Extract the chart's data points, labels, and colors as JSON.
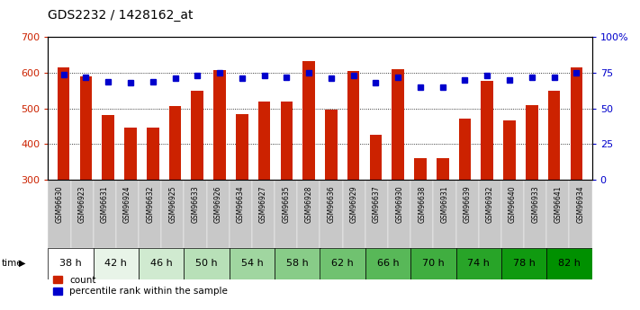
{
  "title": "GDS2232 / 1428162_at",
  "gsm_labels": [
    "GSM96630",
    "GSM96923",
    "GSM96631",
    "GSM96924",
    "GSM96632",
    "GSM96925",
    "GSM96633",
    "GSM96926",
    "GSM96634",
    "GSM96927",
    "GSM96635",
    "GSM96928",
    "GSM96636",
    "GSM96929",
    "GSM96637",
    "GSM96930",
    "GSM96638",
    "GSM96931",
    "GSM96639",
    "GSM96932",
    "GSM96640",
    "GSM96933",
    "GSM96641",
    "GSM96934"
  ],
  "time_labels": [
    "38 h",
    "42 h",
    "46 h",
    "50 h",
    "54 h",
    "58 h",
    "62 h",
    "66 h",
    "70 h",
    "74 h",
    "78 h",
    "82 h"
  ],
  "time_groups": [
    2,
    2,
    2,
    2,
    2,
    2,
    2,
    2,
    2,
    2,
    2,
    2
  ],
  "bar_values": [
    615,
    590,
    482,
    447,
    447,
    508,
    550,
    608,
    483,
    520,
    520,
    632,
    496,
    604,
    427,
    610,
    362,
    360,
    471,
    578,
    466,
    510,
    549,
    615
  ],
  "pct_values": [
    74,
    72,
    69,
    68,
    69,
    71,
    73,
    75,
    71,
    73,
    72,
    75,
    71,
    73,
    68,
    72,
    65,
    65,
    70,
    73,
    70,
    72,
    72,
    75
  ],
  "ylim_left": [
    300,
    700
  ],
  "ylim_right": [
    0,
    100
  ],
  "yticks_left": [
    300,
    400,
    500,
    600,
    700
  ],
  "ytick_labels_left": [
    "300",
    "400",
    "500",
    "600",
    "700"
  ],
  "yticks_right": [
    0,
    25,
    50,
    75,
    100
  ],
  "ytick_labels_right": [
    "0",
    "25",
    "50",
    "75",
    "100%"
  ],
  "bar_color": "#cc2200",
  "pct_color": "#0000cc",
  "grid_color": "#000000",
  "bg_color": "#ffffff",
  "time_green_seq": [
    "#ffffff",
    "#e8f4e8",
    "#d0ead0",
    "#b8e0b8",
    "#a0d6a0",
    "#88cc88",
    "#70c270",
    "#58b858",
    "#40ae40",
    "#28a428",
    "#109a10",
    "#009000"
  ],
  "gsm_bg": "#c8c8c8"
}
